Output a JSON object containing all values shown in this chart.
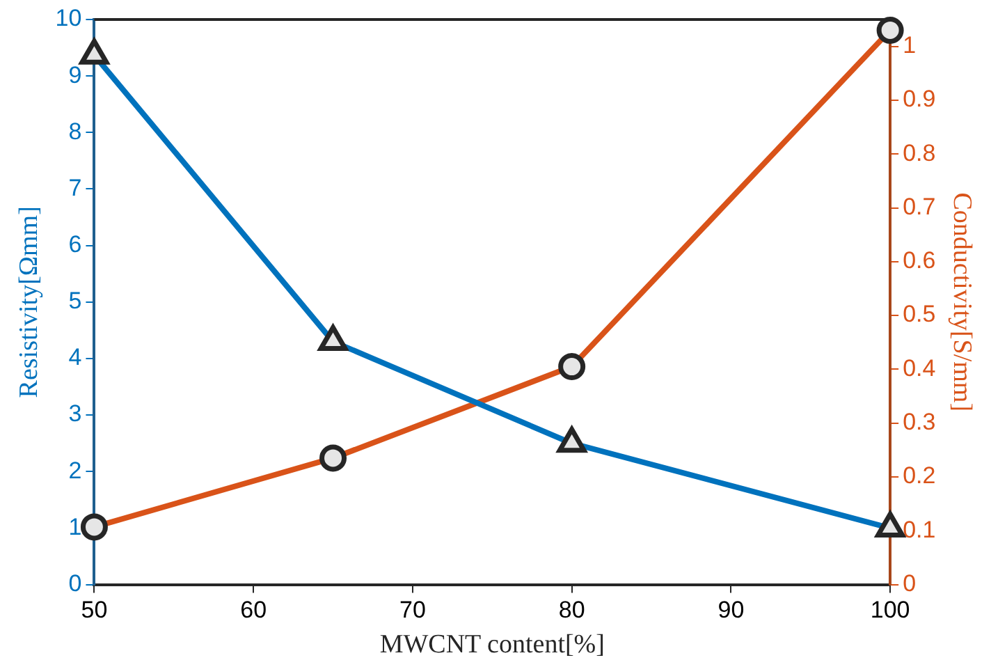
{
  "chart_data": {
    "type": "line",
    "xlabel": "MWCNT content[%]",
    "ylabel": "Resistivity[Ωmm]",
    "y2label": "Conductivity[S/mm]",
    "x": [
      50,
      65,
      80,
      100
    ],
    "series": [
      {
        "color": "#0072bd",
        "values": [
          9.37,
          4.3,
          2.5,
          1.0
        ],
        "marker": "triangle"
      },
      {
        "color": "#d95319",
        "values": [
          0.107,
          0.235,
          0.405,
          1.03
        ],
        "marker": "circle",
        "axis": "y2"
      }
    ],
    "xlim": [
      50,
      100
    ],
    "xticks": [
      50,
      60,
      70,
      80,
      90,
      100
    ],
    "ylim": [
      0,
      10
    ],
    "yticks": [
      0,
      1,
      2,
      3,
      4,
      5,
      6,
      7,
      8,
      9,
      10
    ],
    "y2lim": [
      0,
      1.05
    ],
    "y2ticks": [
      0,
      0.1,
      0.2,
      0.3,
      0.4,
      0.5,
      0.6,
      0.7,
      0.8,
      0.9,
      1
    ],
    "grid": false,
    "legend": false,
    "line_style": "solid"
  }
}
